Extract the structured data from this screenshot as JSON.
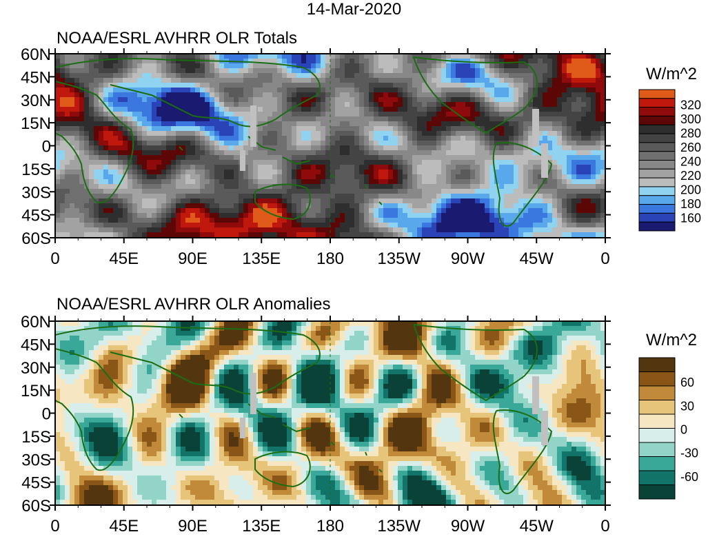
{
  "figure": {
    "date_title": "14-Mar-2020"
  },
  "lon_ticks": [
    "0",
    "45E",
    "90E",
    "135E",
    "180",
    "135W",
    "90W",
    "45W",
    "0"
  ],
  "lat_ticks": [
    "60N",
    "45N",
    "30N",
    "15N",
    "0",
    "15S",
    "30S",
    "45S",
    "60S"
  ],
  "panels": [
    {
      "id": "totals",
      "title": "NOAA/ESRL AVHRR OLR Totals",
      "units": "W/m^2",
      "colorbar": {
        "labels": [
          "320",
          "300",
          "280",
          "260",
          "240",
          "220",
          "200",
          "180",
          "160"
        ],
        "colors": [
          "#e05a1a",
          "#c0180c",
          "#8f0a0a",
          "#5c0606",
          "#2e2e2e",
          "#444444",
          "#5a5a5a",
          "#707070",
          "#888888",
          "#a2a2a2",
          "#bcbcbc",
          "#8fd3f0",
          "#5aa8ec",
          "#3a78e0",
          "#2a44b8",
          "#1a1a70"
        ]
      }
    },
    {
      "id": "anomalies",
      "title": "NOAA/ESRL AVHRR OLR Anomalies",
      "units": "W/m^2",
      "colorbar": {
        "labels": [
          "60",
          "30",
          "0",
          "-30",
          "-60"
        ],
        "colors": [
          "#533610",
          "#8a5618",
          "#c08a3a",
          "#e6c47a",
          "#f6e6c2",
          "#d8eeea",
          "#93d4c8",
          "#3aa898",
          "#127468",
          "#0a4238"
        ]
      }
    }
  ],
  "map_colors": {
    "coast": "#1a6e12",
    "missing": "#c0c0c0"
  }
}
